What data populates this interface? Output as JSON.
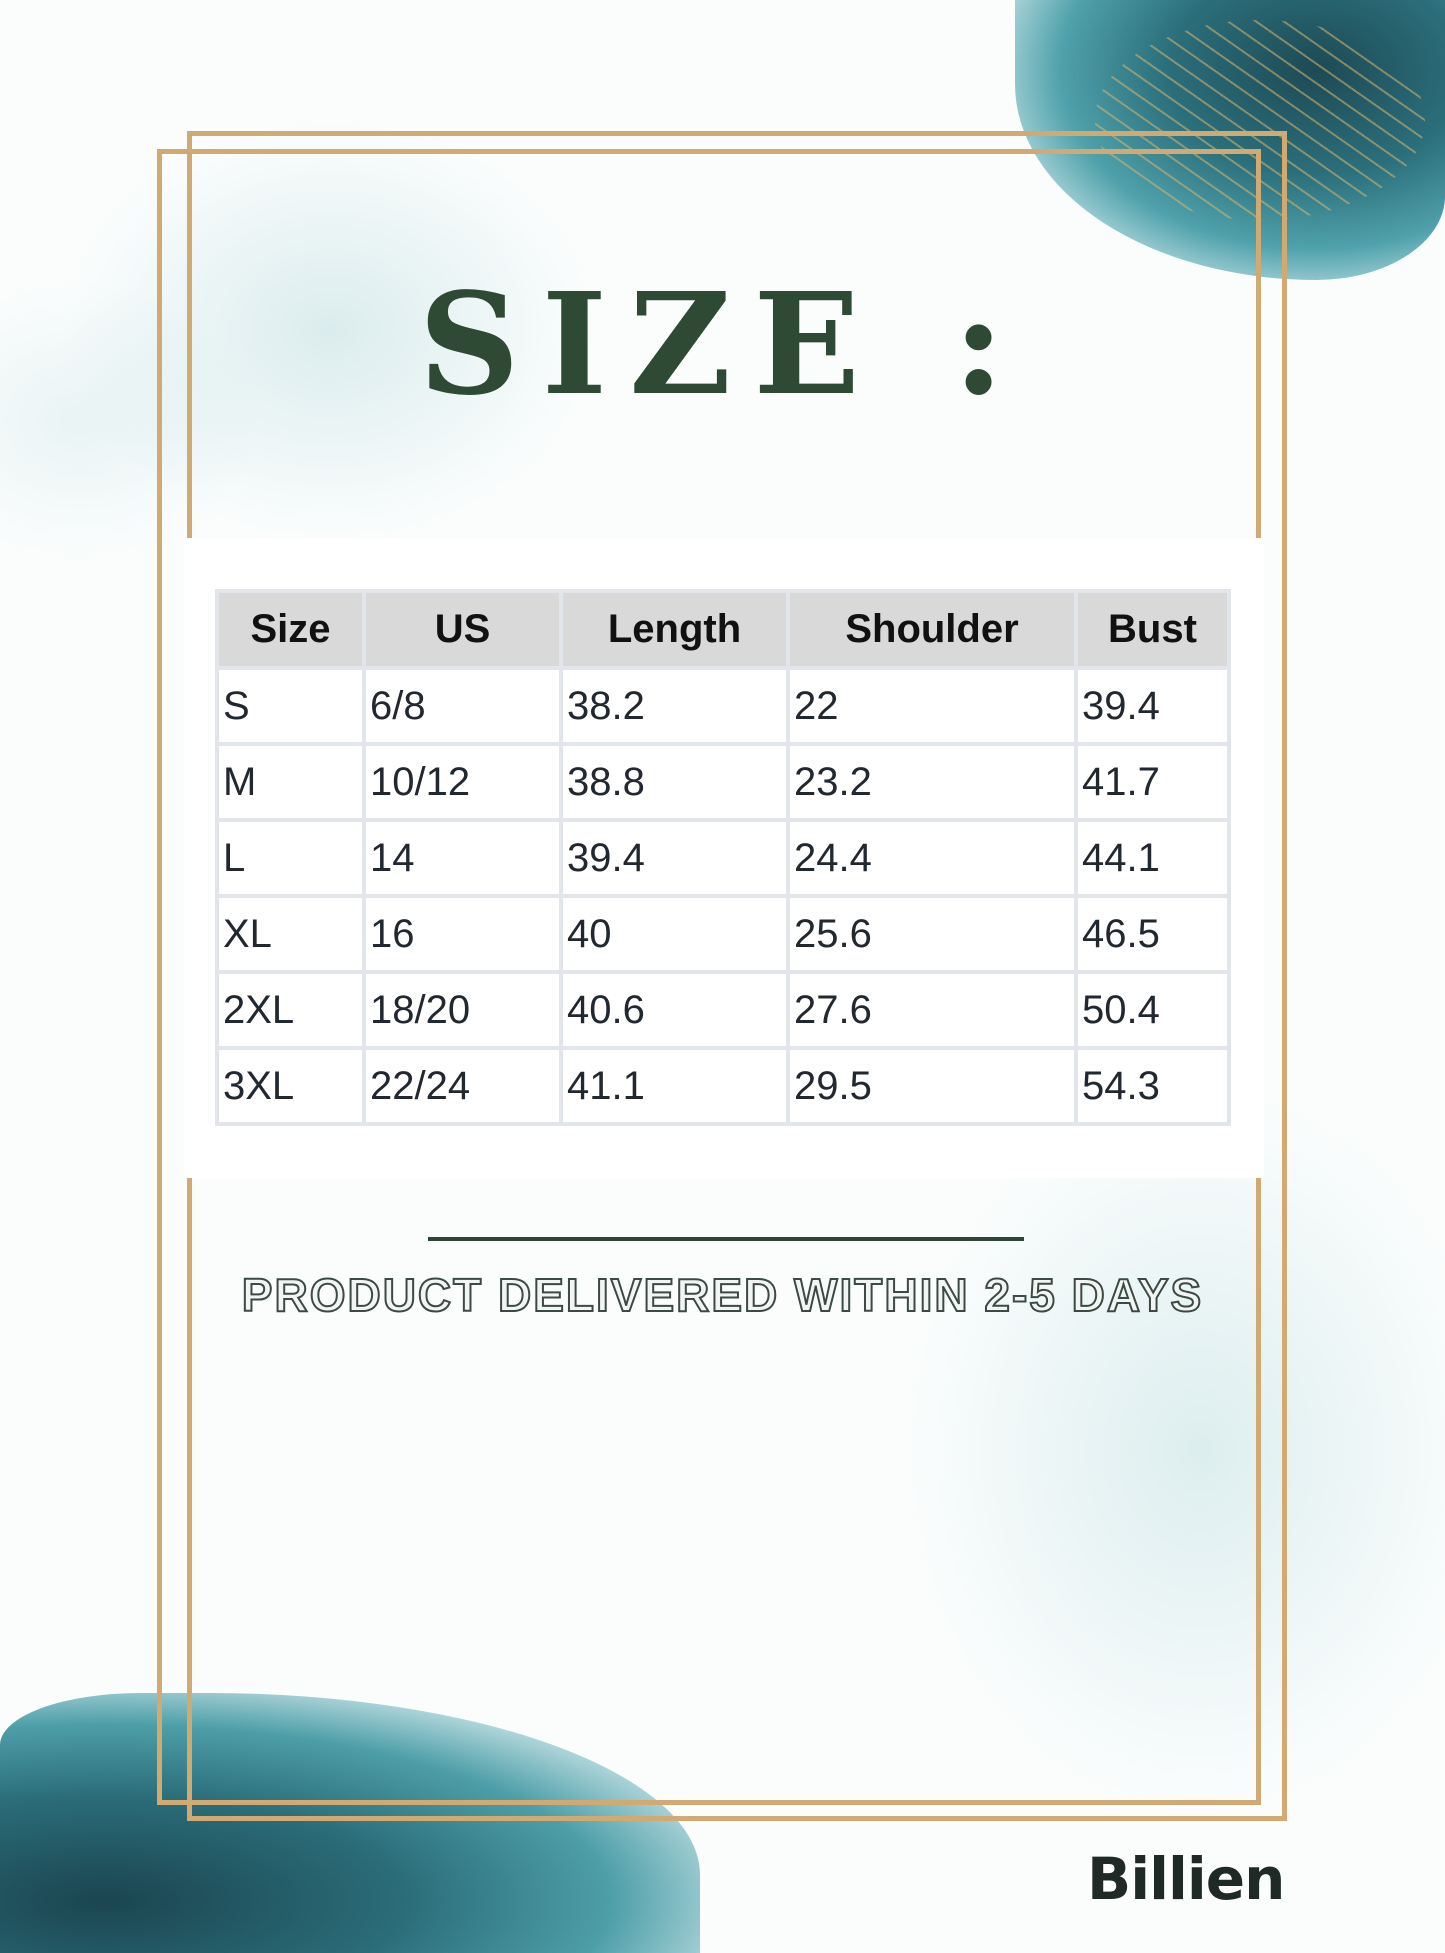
{
  "title": "SIZE :",
  "table": {
    "headers": [
      "Size",
      "US",
      "Length",
      "Shoulder",
      "Bust"
    ],
    "rows": [
      [
        "S",
        "6/8",
        "38.2",
        "22",
        "39.4"
      ],
      [
        "M",
        "10/12",
        "38.8",
        "23.2",
        "41.7"
      ],
      [
        "L",
        "14",
        "39.4",
        "24.4",
        "44.1"
      ],
      [
        "XL",
        "16",
        "40",
        "25.6",
        "46.5"
      ],
      [
        "2XL",
        "18/20",
        "40.6",
        "27.6",
        "50.4"
      ],
      [
        "3XL",
        "22/24",
        "41.1",
        "29.5",
        "54.3"
      ]
    ]
  },
  "delivery_note": "PRODUCT DELIVERED WITHIN 2-5 DAYS",
  "brand": "Billien",
  "colors": {
    "title": "#2e4a35",
    "frame": "#d0aa72",
    "accent_teal": "#2b6f7b"
  }
}
